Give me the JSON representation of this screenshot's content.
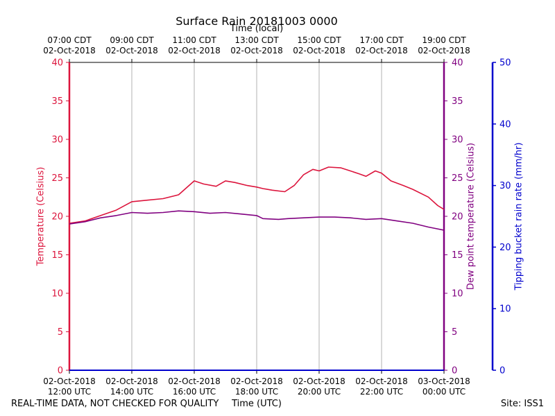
{
  "page_title": "Surface Rain 20181003 0000",
  "footer": {
    "disclaimer": "REAL-TIME DATA, NOT CHECKED FOR QUALITY",
    "site": "Site: ISS1"
  },
  "chart_data": {
    "type": "line",
    "title": "Surface Rain 20181003 0000",
    "xlabel": "Time (UTC)",
    "x2label": "Time (local)",
    "ylabel": "Temperature (Celsius)",
    "y2label": "Dew point temperature (Celsius)",
    "y3label": "Tipping bucket rain rate (mm/hr)",
    "x_hours_range": [
      12,
      24
    ],
    "ylim": [
      0,
      40
    ],
    "y3lim": [
      0,
      50
    ],
    "yticks": [
      "0",
      "5",
      "10",
      "15",
      "20",
      "25",
      "30",
      "35",
      "40"
    ],
    "y3ticks": [
      "0",
      "10",
      "20",
      "30",
      "40",
      "50"
    ],
    "xticks_utc": [
      {
        "hour": 12,
        "date": "02-Oct-2018",
        "time": "12:00 UTC"
      },
      {
        "hour": 14,
        "date": "02-Oct-2018",
        "time": "14:00 UTC"
      },
      {
        "hour": 16,
        "date": "02-Oct-2018",
        "time": "16:00 UTC"
      },
      {
        "hour": 18,
        "date": "02-Oct-2018",
        "time": "18:00 UTC"
      },
      {
        "hour": 20,
        "date": "02-Oct-2018",
        "time": "20:00 UTC"
      },
      {
        "hour": 22,
        "date": "02-Oct-2018",
        "time": "22:00 UTC"
      },
      {
        "hour": 24,
        "date": "03-Oct-2018",
        "time": "00:00 UTC"
      }
    ],
    "xticks_local": [
      {
        "hour": 12,
        "time": "07:00 CDT",
        "date": "02-Oct-2018"
      },
      {
        "hour": 14,
        "time": "09:00 CDT",
        "date": "02-Oct-2018"
      },
      {
        "hour": 16,
        "time": "11:00 CDT",
        "date": "02-Oct-2018"
      },
      {
        "hour": 18,
        "time": "13:00 CDT",
        "date": "02-Oct-2018"
      },
      {
        "hour": 20,
        "time": "15:00 CDT",
        "date": "02-Oct-2018"
      },
      {
        "hour": 22,
        "time": "17:00 CDT",
        "date": "02-Oct-2018"
      },
      {
        "hour": 24,
        "time": "19:00 CDT",
        "date": "02-Oct-2018"
      }
    ],
    "series": [
      {
        "name": "Temperature",
        "color": "#dc143c",
        "x": [
          12.0,
          12.5,
          13.0,
          13.5,
          14.0,
          14.5,
          15.0,
          15.5,
          16.0,
          16.3,
          16.7,
          17.0,
          17.3,
          17.7,
          18.0,
          18.2,
          18.5,
          18.9,
          19.2,
          19.5,
          19.8,
          20.0,
          20.3,
          20.7,
          21.0,
          21.3,
          21.5,
          21.8,
          22.0,
          22.3,
          22.7,
          23.0,
          23.5,
          23.8,
          24.0
        ],
        "values": [
          19.1,
          19.4,
          20.1,
          20.8,
          21.9,
          22.1,
          22.3,
          22.8,
          24.6,
          24.2,
          23.9,
          24.6,
          24.4,
          24.0,
          23.8,
          23.6,
          23.4,
          23.2,
          24.0,
          25.4,
          26.1,
          25.9,
          26.4,
          26.3,
          25.9,
          25.5,
          25.2,
          25.9,
          25.6,
          24.6,
          24.0,
          23.5,
          22.5,
          21.4,
          20.9
        ]
      },
      {
        "name": "Dew point temperature",
        "color": "#800080",
        "x": [
          12.0,
          12.5,
          13.0,
          13.5,
          14.0,
          14.5,
          15.0,
          15.5,
          16.0,
          16.5,
          17.0,
          17.5,
          18.0,
          18.2,
          18.7,
          19.0,
          19.5,
          20.0,
          20.5,
          21.0,
          21.5,
          22.0,
          22.5,
          23.0,
          23.5,
          24.0
        ],
        "values": [
          19.0,
          19.3,
          19.8,
          20.1,
          20.5,
          20.4,
          20.5,
          20.7,
          20.6,
          20.4,
          20.5,
          20.3,
          20.1,
          19.7,
          19.6,
          19.7,
          19.8,
          19.9,
          19.9,
          19.8,
          19.6,
          19.7,
          19.4,
          19.1,
          18.6,
          18.2
        ]
      },
      {
        "name": "Tipping bucket rain rate",
        "color": "#0000cd",
        "x": [
          12.0,
          24.0
        ],
        "values": [
          0,
          0
        ]
      }
    ]
  }
}
